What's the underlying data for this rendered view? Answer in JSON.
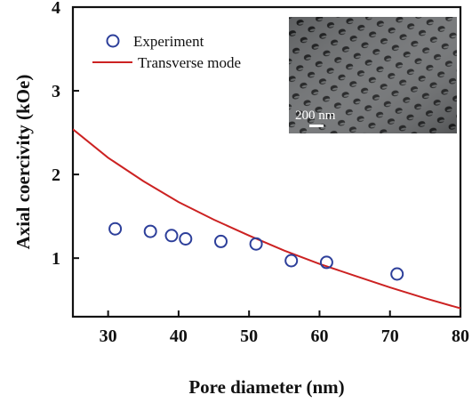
{
  "chart_data": {
    "type": "scatter",
    "xlabel": "Pore diameter (nm)",
    "ylabel": "Axial coercivity (kOe)",
    "xlim": [
      25,
      80
    ],
    "ylim": [
      0.3,
      4
    ],
    "xticks": [
      "30",
      "40",
      "50",
      "60",
      "70",
      "80"
    ],
    "yticks": [
      "1",
      "2",
      "3",
      "4"
    ],
    "grid": false,
    "legend_position": "top-left",
    "series": [
      {
        "name": "Experiment",
        "type": "scatter",
        "marker": "open-circle",
        "color": "#2d3f9a",
        "x": [
          31,
          36,
          39,
          41,
          46,
          51,
          56,
          61,
          71
        ],
        "y": [
          1.35,
          1.32,
          1.27,
          1.23,
          1.2,
          1.17,
          0.97,
          0.95,
          0.81
        ]
      },
      {
        "name": "Transverse mode",
        "type": "line",
        "color": "#cc2222",
        "x": [
          25,
          30,
          35,
          40,
          45,
          50,
          55,
          60,
          65,
          70,
          75,
          80
        ],
        "y": [
          2.54,
          2.2,
          1.92,
          1.67,
          1.46,
          1.27,
          1.09,
          0.93,
          0.79,
          0.65,
          0.52,
          0.4
        ]
      }
    ],
    "inset": {
      "description_label": "200 nm"
    }
  }
}
